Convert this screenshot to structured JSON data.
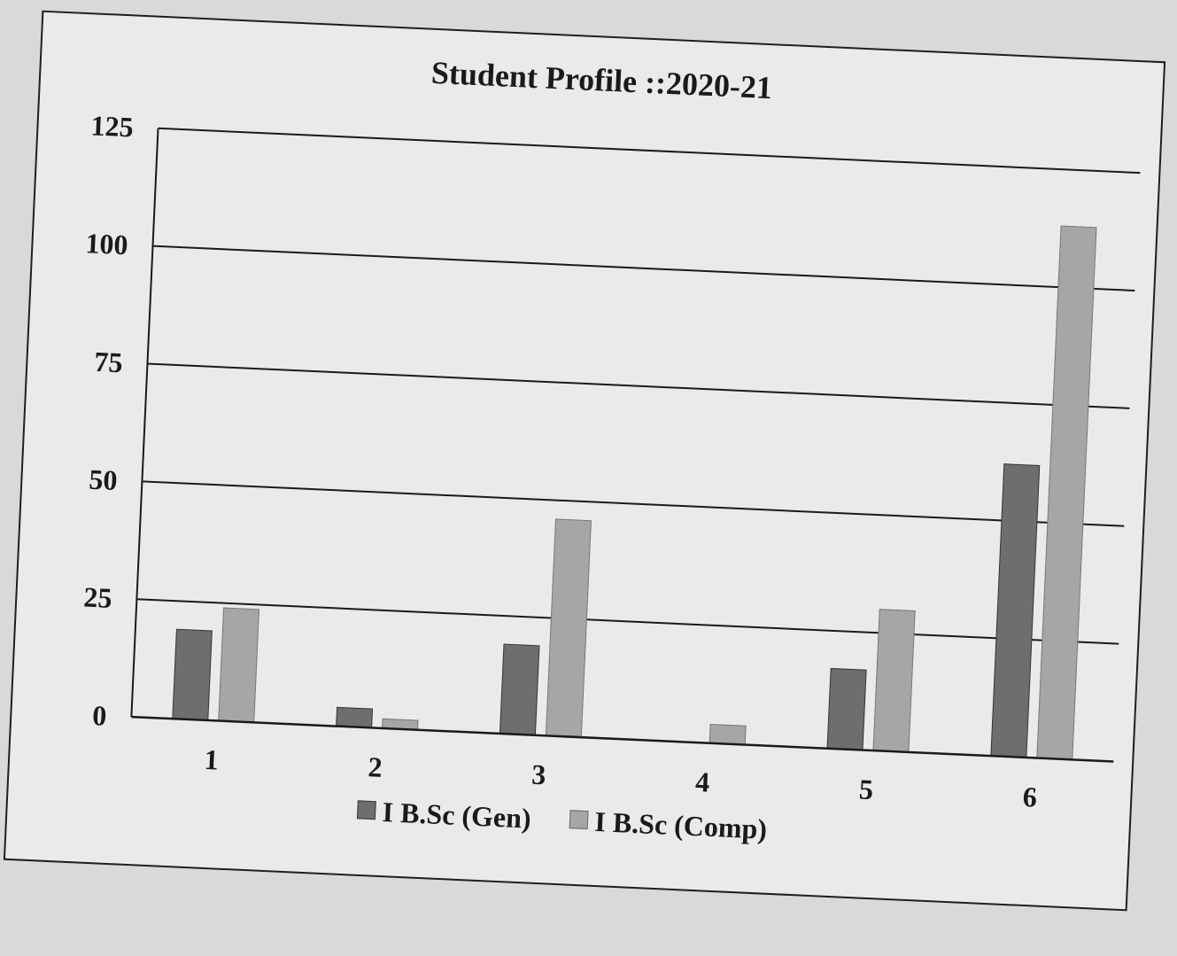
{
  "chart_data": {
    "type": "bar",
    "title": "Student Profile ::2020-21",
    "xlabel": "",
    "ylabel": "",
    "categories": [
      "1",
      "2",
      "3",
      "4",
      "5",
      "6"
    ],
    "series": [
      {
        "name": "I B.Sc (Gen)",
        "values": [
          19,
          4,
          19,
          0,
          17,
          62
        ],
        "color": "#6e6e6e"
      },
      {
        "name": "I B.Sc (Comp)",
        "values": [
          24,
          2,
          46,
          4,
          30,
          113
        ],
        "color": "#a6a6a6"
      }
    ],
    "yticks": [
      "0",
      "25",
      "50",
      "75",
      "100",
      "125"
    ],
    "ylim": [
      0,
      125
    ],
    "grid": true,
    "legend_position": "bottom-center"
  }
}
